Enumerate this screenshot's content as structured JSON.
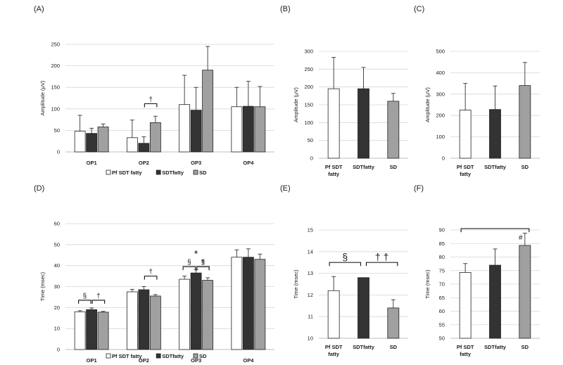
{
  "legend": [
    "Pf SDT fatty",
    "SDTfatty",
    "SD"
  ],
  "series_colors": [
    "#ffffff",
    "#333333",
    "#a0a0a0"
  ],
  "chart_data": [
    {
      "panel": "(A)",
      "type": "bar",
      "ylabel": "Amplitude (μV)",
      "ylim": [
        0,
        250
      ],
      "yticks": [
        0,
        50,
        100,
        150,
        200,
        250
      ],
      "grid": true,
      "legend_position": "bottom",
      "categories": [
        "OP1",
        "OP2",
        "OP3",
        "OP4"
      ],
      "series": [
        {
          "name": "Pf SDT fatty",
          "values": [
            48,
            33,
            110,
            105
          ],
          "errors": [
            37,
            41,
            68,
            45
          ]
        },
        {
          "name": "SDTfatty",
          "values": [
            43,
            20,
            97,
            106
          ],
          "errors": [
            12,
            15,
            53,
            58
          ]
        },
        {
          "name": "SD",
          "values": [
            58,
            68,
            190,
            105
          ],
          "errors": [
            7,
            15,
            55,
            47
          ]
        }
      ],
      "annotations": [
        {
          "text": "†",
          "category": 1,
          "from": 1,
          "to": 2,
          "y": 112
        }
      ]
    },
    {
      "panel": "(B)",
      "type": "bar",
      "ylabel": "Amplitude (μV)",
      "ylim": [
        0,
        300
      ],
      "yticks": [
        0,
        50,
        100,
        150,
        200,
        250,
        300
      ],
      "grid": true,
      "categories": [
        "Pf SDT fatty",
        "SDTfatty",
        "SD"
      ],
      "values": [
        195,
        195,
        160
      ],
      "errors": [
        88,
        60,
        22
      ]
    },
    {
      "panel": "(C)",
      "type": "bar",
      "ylabel": "Amplitude (μV)",
      "ylim": [
        0,
        500
      ],
      "yticks": [
        0,
        100,
        200,
        300,
        400,
        500
      ],
      "grid": true,
      "categories": [
        "Pf SDT fatty",
        "SDTfatty",
        "SD"
      ],
      "values": [
        225,
        228,
        340
      ],
      "errors": [
        125,
        110,
        108
      ]
    },
    {
      "panel": "(D)",
      "type": "bar",
      "ylabel": "Time (msec)",
      "ylim": [
        0,
        60
      ],
      "yticks": [
        0,
        10,
        20,
        30,
        40,
        50,
        60
      ],
      "grid": true,
      "legend_position": "bottom",
      "categories": [
        "OP1",
        "OP2",
        "OP3",
        "OP4"
      ],
      "series": [
        {
          "name": "Pf SDT fatty",
          "values": [
            18,
            27.5,
            33.5,
            44
          ],
          "errors": [
            0.5,
            1.2,
            1.5,
            3.5
          ]
        },
        {
          "name": "SDTfatty",
          "values": [
            19,
            28.5,
            36.5,
            44
          ],
          "errors": [
            0.8,
            1.5,
            1.5,
            4
          ]
        },
        {
          "name": "SD",
          "values": [
            17.8,
            25.5,
            33,
            43
          ],
          "errors": [
            0.4,
            0.7,
            1.2,
            2.5
          ]
        }
      ],
      "annotations": [
        {
          "text": "§",
          "category": 0,
          "from": 0,
          "to": 1,
          "y": 23.5
        },
        {
          "text": "†",
          "category": 0,
          "from": 1,
          "to": 2,
          "y": 23.5
        },
        {
          "text": "†",
          "category": 1,
          "from": 1,
          "to": 2,
          "y": 35
        },
        {
          "text": "§",
          "category": 2,
          "from": 0,
          "to": 1,
          "y": 39.5
        },
        {
          "text": "§",
          "category": 2,
          "from": 1,
          "to": 2,
          "y": 39.5
        },
        {
          "text": "†",
          "category": 2,
          "from": 1,
          "to": 2,
          "y": 39.5
        },
        {
          "text": "*",
          "category": 2,
          "center": true,
          "y": 44
        }
      ]
    },
    {
      "panel": "(E)",
      "type": "bar",
      "ylabel": "Time (msec)",
      "ylim": [
        10,
        15
      ],
      "yticks": [
        10,
        11,
        12,
        13,
        14,
        15
      ],
      "grid": true,
      "categories": [
        "Pf SDT fatty",
        "SDTfatty",
        "SD"
      ],
      "values": [
        12.2,
        12.8,
        11.4
      ],
      "errors": [
        0.65,
        0,
        0.38
      ],
      "annotations": [
        {
          "text": "§",
          "from": 0,
          "to": 1,
          "y": 13.5
        },
        {
          "text": "† †",
          "from": 1,
          "to": 2,
          "y": 13.5
        }
      ]
    },
    {
      "panel": "(F)",
      "type": "bar",
      "ylabel": "Time (msec)",
      "ylim": [
        50,
        90
      ],
      "yticks": [
        50,
        55,
        60,
        65,
        70,
        75,
        80,
        85,
        90
      ],
      "grid": true,
      "categories": [
        "Pf SDT fatty",
        "SDTfatty",
        "SD"
      ],
      "values": [
        74.3,
        77,
        84.3
      ],
      "errors": [
        3.3,
        6,
        4.5
      ],
      "annotations": [
        {
          "text": "#",
          "from": 0,
          "to": 2,
          "y": 90.5
        }
      ]
    }
  ]
}
